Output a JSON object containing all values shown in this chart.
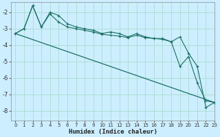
{
  "xlabel": "Humidex (Indice chaleur)",
  "bg_color": "#cceeff",
  "grid_color": "#aaddcc",
  "line_color": "#1a6e62",
  "xlim": [
    -0.5,
    23
  ],
  "ylim": [
    -8.6,
    -1.4
  ],
  "yticks": [
    -8,
    -7,
    -6,
    -5,
    -4,
    -3,
    -2
  ],
  "xticks": [
    0,
    1,
    2,
    3,
    4,
    5,
    6,
    7,
    8,
    9,
    10,
    11,
    12,
    13,
    14,
    15,
    16,
    17,
    18,
    19,
    20,
    21,
    22,
    23
  ],
  "series1_x": [
    0,
    1,
    2,
    3,
    4,
    5,
    6,
    7,
    8,
    9,
    10,
    11,
    12,
    13,
    14,
    15,
    16,
    17,
    18,
    19,
    20,
    21,
    22,
    23
  ],
  "series1_y": [
    -3.3,
    -3.0,
    -1.6,
    -2.9,
    -2.1,
    -2.6,
    -2.9,
    -3.0,
    -3.1,
    -3.2,
    -3.35,
    -3.4,
    -3.45,
    -3.55,
    -3.4,
    -3.55,
    -3.6,
    -3.65,
    -3.8,
    -5.3,
    -4.7,
    -6.3,
    -7.4,
    -7.5
  ],
  "series2_x": [
    0,
    1,
    2,
    3,
    4,
    5,
    6,
    7,
    8,
    9,
    10,
    11,
    12,
    13,
    14,
    15,
    16,
    17,
    18,
    19,
    20,
    21,
    22,
    23
  ],
  "series2_y": [
    -3.3,
    -3.0,
    -1.6,
    -2.9,
    -2.0,
    -2.2,
    -2.7,
    -2.9,
    -3.0,
    -3.1,
    -3.3,
    -3.2,
    -3.3,
    -3.5,
    -3.3,
    -3.5,
    -3.6,
    -3.6,
    -3.8,
    -3.5,
    -4.5,
    -5.3,
    -7.8,
    -7.5
  ],
  "series3_x": [
    0,
    23
  ],
  "series3_y": [
    -3.3,
    -7.5
  ]
}
